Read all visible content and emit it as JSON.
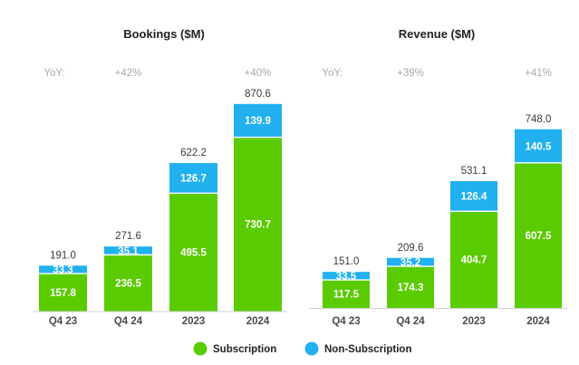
{
  "chart_data": [
    {
      "type": "bar",
      "stacked": true,
      "title": "Bookings ($M)",
      "yoy_label": "YoY:",
      "categories": [
        "Q4 23",
        "Q4 24",
        "2023",
        "2024"
      ],
      "series": [
        {
          "name": "Subscription",
          "values": [
            157.8,
            236.5,
            495.5,
            730.7
          ]
        },
        {
          "name": "Non-Subscription",
          "values": [
            33.3,
            35.1,
            126.7,
            139.9
          ]
        }
      ],
      "totals": [
        "191.0",
        "271.6",
        "622.2",
        "870.6"
      ],
      "subscription_labels": [
        "157.8",
        "236.5",
        "495.5",
        "730.7"
      ],
      "nonsubscription_labels": [
        "33.3",
        "35.1",
        "126.7",
        "139.9"
      ],
      "yoy": [
        "",
        "+42%",
        "",
        "+40%"
      ],
      "grid": false
    },
    {
      "type": "bar",
      "stacked": true,
      "title": "Revenue ($M)",
      "yoy_label": "YoY:",
      "categories": [
        "Q4 23",
        "Q4 24",
        "2023",
        "2024"
      ],
      "series": [
        {
          "name": "Subscription",
          "values": [
            117.5,
            174.3,
            404.7,
            607.5
          ]
        },
        {
          "name": "Non-Subscription",
          "values": [
            33.5,
            35.2,
            126.4,
            140.5
          ]
        }
      ],
      "totals": [
        "151.0",
        "209.6",
        "531.1",
        "748.0"
      ],
      "subscription_labels": [
        "117.5",
        "174.3",
        "404.7",
        "607.5"
      ],
      "nonsubscription_labels": [
        "33.5",
        "35.2",
        "126.4",
        "140.5"
      ],
      "yoy": [
        "",
        "+39%",
        "",
        "+41%"
      ],
      "grid": false
    }
  ],
  "legend": {
    "placement": "bottom-center",
    "items": [
      {
        "label": "Subscription",
        "color": "#5acb00"
      },
      {
        "label": "Non-Subscription",
        "color": "#21b0f0"
      }
    ]
  },
  "colors": {
    "subscription": "#5acb00",
    "nonsubscription": "#21b0f0",
    "axis": "#cfcfcf"
  }
}
